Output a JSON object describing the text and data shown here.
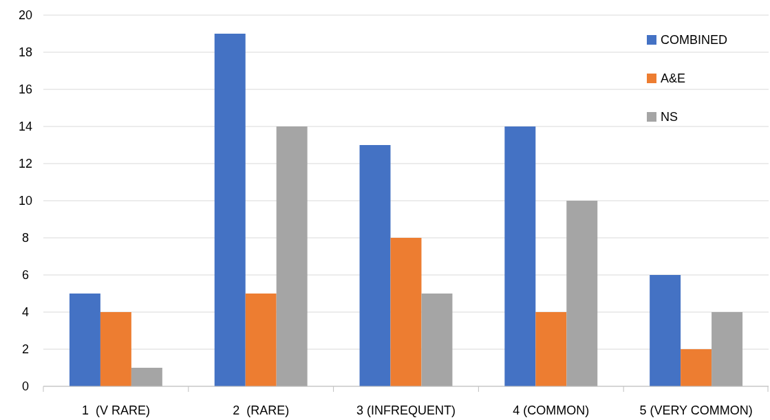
{
  "chart_data": {
    "type": "bar",
    "categories": [
      "1  (V RARE)",
      "2  (RARE)",
      "3 (INFREQUENT)",
      "4 (COMMON)",
      "5 (VERY COMMON)"
    ],
    "series": [
      {
        "name": "COMBINED",
        "color": "#4472c4",
        "values": [
          5,
          19,
          13,
          14,
          6
        ]
      },
      {
        "name": "A&E",
        "color": "#ed7d31",
        "values": [
          4,
          5,
          8,
          4,
          2
        ]
      },
      {
        "name": "NS",
        "color": "#a5a5a5",
        "values": [
          1,
          14,
          5,
          10,
          4
        ]
      }
    ],
    "ylim": [
      0,
      20
    ],
    "yticks": [
      0,
      2,
      4,
      6,
      8,
      10,
      12,
      14,
      16,
      18,
      20
    ],
    "grid": "y",
    "legend": "top right"
  }
}
